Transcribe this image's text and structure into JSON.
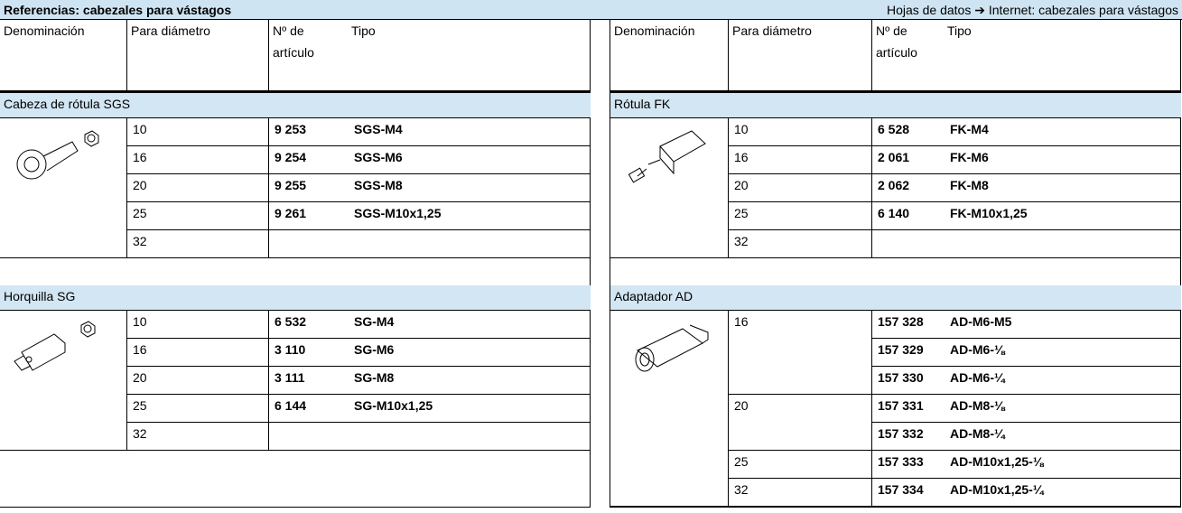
{
  "header": {
    "title": "Referencias: cabezales para vástagos",
    "link": "Hojas de datos ➔ Internet: cabezales para vástagos"
  },
  "tables": [
    {
      "columns": [
        "Denominación",
        "Para diámetro",
        "Nº de artículo",
        "Tipo"
      ],
      "sections": [
        {
          "name": "Cabeza de rótula SGS",
          "rows": [
            {
              "diameter": 10,
              "items": [
                {
                  "part": "9 253",
                  "type": "SGS-M4"
                }
              ]
            },
            {
              "diameter": 16,
              "items": [
                {
                  "part": "9 254",
                  "type": "SGS-M6"
                }
              ]
            },
            {
              "diameter": 20,
              "items": [
                {
                  "part": "9 255",
                  "type": "SGS-M8"
                }
              ]
            },
            {
              "diameter": 25,
              "items": [
                {
                  "part": "9 261",
                  "type": "SGS-M10x1,25"
                }
              ]
            },
            {
              "diameter": 32
            }
          ]
        },
        {
          "name": "Horquilla SG",
          "rows": [
            {
              "diameter": 10,
              "items": [
                {
                  "part": "6 532",
                  "type": "SG-M4"
                }
              ]
            },
            {
              "diameter": 16,
              "items": [
                {
                  "part": "3 110",
                  "type": "SG-M6"
                }
              ]
            },
            {
              "diameter": 20,
              "items": [
                {
                  "part": "3 111",
                  "type": "SG-M8"
                }
              ]
            },
            {
              "diameter": 25,
              "items": [
                {
                  "part": "6 144",
                  "type": "SG-M10x1,25"
                }
              ]
            },
            {
              "diameter": 32
            }
          ]
        }
      ]
    },
    {
      "columns": [
        "Denominación",
        "Para diámetro",
        "Nº de artículo",
        "Tipo"
      ],
      "sections": [
        {
          "name": "Rótula FK",
          "rows": [
            {
              "diameter": 10,
              "items": [
                {
                  "part": "6 528",
                  "type": "FK-M4"
                }
              ]
            },
            {
              "diameter": 16,
              "items": [
                {
                  "part": "2 061",
                  "type": "FK-M6"
                }
              ]
            },
            {
              "diameter": 20,
              "items": [
                {
                  "part": "2 062",
                  "type": "FK-M8"
                }
              ]
            },
            {
              "diameter": 25,
              "items": [
                {
                  "part": "6 140",
                  "type": "FK-M10x1,25"
                }
              ]
            },
            {
              "diameter": 32
            }
          ]
        },
        {
          "name": "Adaptador AD",
          "rows": [
            {
              "diameter": 16,
              "items": [
                {
                  "part": "157 328",
                  "type": "AD-M6-M5"
                },
                {
                  "part": "157 329",
                  "type": "AD-M6-⅛"
                },
                {
                  "part": "157 330",
                  "type": "AD-M6-¼"
                }
              ]
            },
            {
              "diameter": 20,
              "items": [
                {
                  "part": "157 331",
                  "type": "AD-M8-⅛"
                },
                {
                  "part": "157 332",
                  "type": "AD-M8-¼"
                }
              ]
            },
            {
              "diameter": 25,
              "items": [
                {
                  "part": "157 333",
                  "type": "AD-M10x1,25-⅛"
                }
              ]
            },
            {
              "diameter": 32,
              "items": [
                {
                  "part": "157 334",
                  "type": "AD-M10x1,25-¼"
                }
              ]
            }
          ]
        }
      ]
    }
  ]
}
